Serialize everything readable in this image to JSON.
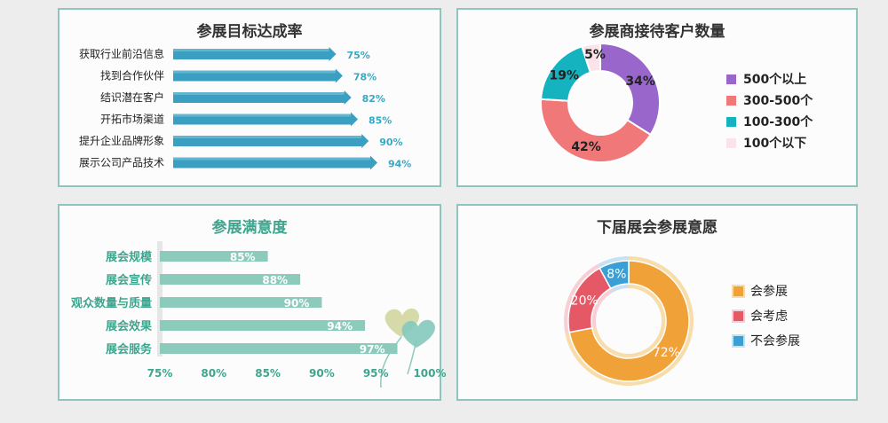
{
  "charts": [
    {
      "type": "bar",
      "title": "参展目标达成率",
      "categories": [
        "获取行业前沿信息",
        "找到合作伙伴",
        "结识潜在客户",
        "开拓市场渠道",
        "提升企业品牌形象",
        "展示公司产品技术"
      ],
      "values": [
        75,
        78,
        82,
        85,
        90,
        94
      ],
      "value_labels": [
        "75%",
        "78%",
        "82%",
        "85%",
        "90%",
        "94%"
      ],
      "color": "#3a9fc0",
      "label_color": "#36a8c4"
    },
    {
      "type": "pie",
      "title": "参展商接待客户数量",
      "labels": [
        "500个以上",
        "300-500个",
        "100-300个",
        "100个以下"
      ],
      "values": [
        34,
        42,
        19,
        5
      ],
      "value_labels": [
        "34%",
        "42%",
        "19%",
        "5%"
      ],
      "colors": [
        "#9966cc",
        "#f07878",
        "#15b3c0",
        "#fbe3ea"
      ],
      "legend": "right"
    },
    {
      "type": "bar",
      "title": "参展满意度",
      "categories": [
        "展会规模",
        "展会宣传",
        "观众数量与质量",
        "展会效果",
        "展会服务"
      ],
      "values": [
        85,
        88,
        90,
        94,
        97
      ],
      "value_labels": [
        "85%",
        "88%",
        "90%",
        "94%",
        "97%"
      ],
      "x_ticks": [
        "75%",
        "80%",
        "85%",
        "90%",
        "95%",
        "100%"
      ],
      "xlim": [
        75,
        100
      ],
      "color": "#8ccbbc",
      "label_color": "#3fa58e"
    },
    {
      "type": "pie",
      "title": "下届展会参展意愿",
      "labels": [
        "会参展",
        "会考虑",
        "不会参展"
      ],
      "values": [
        72,
        20,
        8
      ],
      "value_labels": [
        "72%",
        "20%",
        "8%"
      ],
      "colors": [
        "#f0a238",
        "#e45965",
        "#3a9fd4"
      ],
      "ring_colors": [
        "#f8dcaa",
        "#f7cfd4",
        "#c6e2f2"
      ],
      "legend": "right"
    }
  ],
  "chart_data": [
    {
      "type": "bar",
      "title": "参展目标达成率",
      "categories": [
        "获取行业前沿信息",
        "找到合作伙伴",
        "结识潜在客户",
        "开拓市场渠道",
        "提升企业品牌形象",
        "展示公司产品技术"
      ],
      "values": [
        75,
        78,
        82,
        85,
        90,
        94
      ]
    },
    {
      "type": "pie",
      "title": "参展商接待客户数量",
      "categories": [
        "500个以上",
        "300-500个",
        "100-300个",
        "100个以下"
      ],
      "values": [
        34,
        42,
        19,
        5
      ]
    },
    {
      "type": "bar",
      "title": "参展满意度",
      "categories": [
        "展会规模",
        "展会宣传",
        "观众数量与质量",
        "展会效果",
        "展会服务"
      ],
      "values": [
        85,
        88,
        90,
        94,
        97
      ],
      "xlim": [
        75,
        100
      ]
    },
    {
      "type": "pie",
      "title": "下届展会参展意愿",
      "categories": [
        "会参展",
        "会考虑",
        "不会参展"
      ],
      "values": [
        72,
        20,
        8
      ]
    }
  ]
}
